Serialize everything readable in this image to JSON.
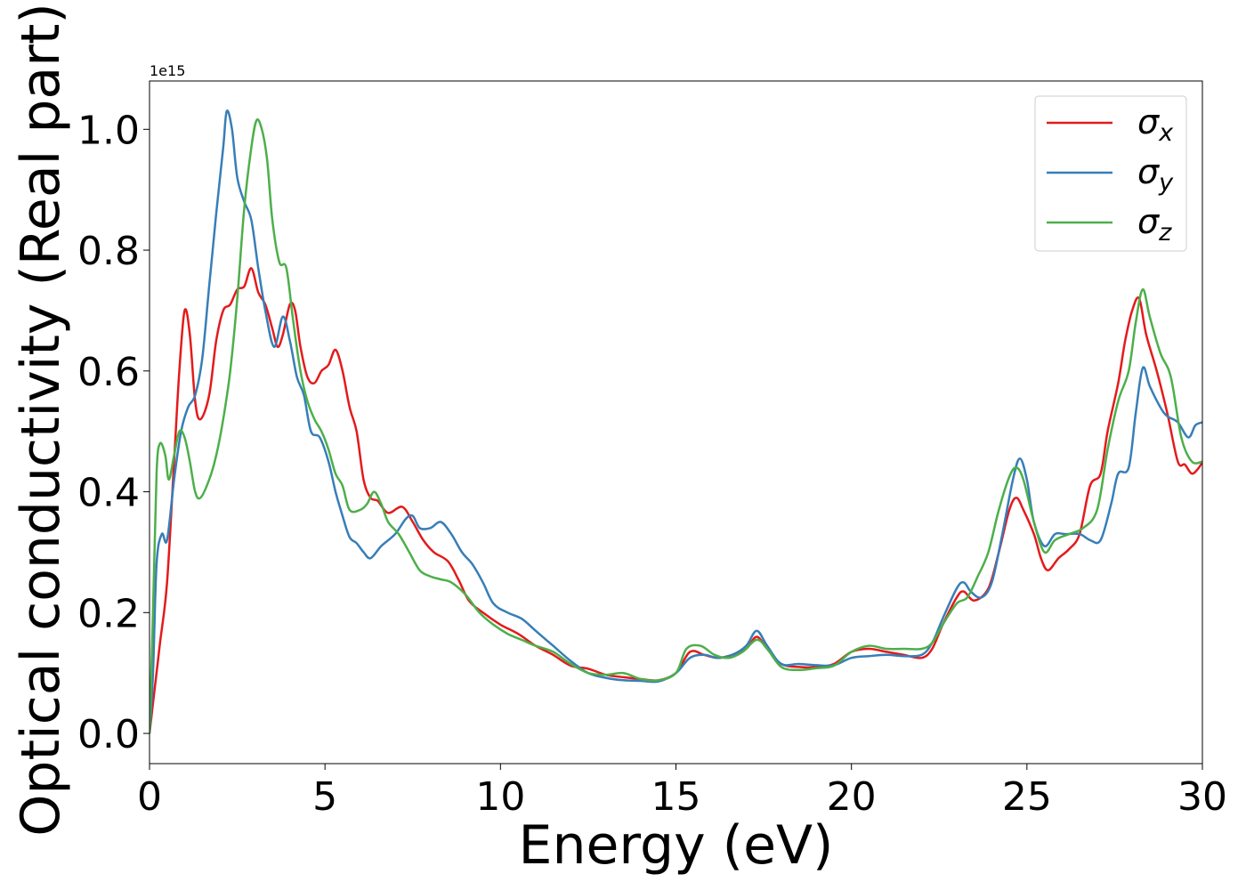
{
  "chart_data": {
    "type": "line",
    "xlabel": "Energy (eV)",
    "ylabel": "Optical conductivity (Real part)",
    "y_multiplier_label": "1e15",
    "xlim": [
      0,
      30
    ],
    "ylim": [
      -0.05,
      1.08
    ],
    "xticks": [
      0,
      5,
      10,
      15,
      20,
      25,
      30
    ],
    "xtick_labels": [
      "0",
      "5",
      "10",
      "15",
      "20",
      "25",
      "30"
    ],
    "yticks": [
      0.0,
      0.2,
      0.4,
      0.6,
      0.8,
      1.0
    ],
    "ytick_labels": [
      "0.0",
      "0.2",
      "0.4",
      "0.6",
      "0.8",
      "1.0"
    ],
    "grid": false,
    "legend_position": "top-right",
    "series": [
      {
        "name": "σx",
        "color": "#e41a1c",
        "points": [
          [
            0,
            0
          ],
          [
            0.1,
            0.05
          ],
          [
            0.3,
            0.15
          ],
          [
            0.5,
            0.25
          ],
          [
            0.7,
            0.45
          ],
          [
            0.85,
            0.6
          ],
          [
            1.0,
            0.7
          ],
          [
            1.15,
            0.66
          ],
          [
            1.3,
            0.55
          ],
          [
            1.45,
            0.52
          ],
          [
            1.7,
            0.56
          ],
          [
            1.9,
            0.65
          ],
          [
            2.1,
            0.7
          ],
          [
            2.3,
            0.71
          ],
          [
            2.5,
            0.735
          ],
          [
            2.7,
            0.74
          ],
          [
            2.9,
            0.77
          ],
          [
            3.1,
            0.73
          ],
          [
            3.3,
            0.71
          ],
          [
            3.5,
            0.67
          ],
          [
            3.65,
            0.64
          ],
          [
            3.8,
            0.66
          ],
          [
            4.0,
            0.71
          ],
          [
            4.15,
            0.7
          ],
          [
            4.3,
            0.64
          ],
          [
            4.5,
            0.59
          ],
          [
            4.7,
            0.58
          ],
          [
            4.9,
            0.6
          ],
          [
            5.1,
            0.61
          ],
          [
            5.3,
            0.635
          ],
          [
            5.5,
            0.6
          ],
          [
            5.7,
            0.54
          ],
          [
            5.9,
            0.5
          ],
          [
            6.1,
            0.42
          ],
          [
            6.3,
            0.39
          ],
          [
            6.5,
            0.385
          ],
          [
            6.8,
            0.365
          ],
          [
            7.2,
            0.375
          ],
          [
            7.5,
            0.35
          ],
          [
            7.8,
            0.32
          ],
          [
            8.1,
            0.3
          ],
          [
            8.5,
            0.285
          ],
          [
            8.8,
            0.255
          ],
          [
            9.1,
            0.22
          ],
          [
            9.5,
            0.2
          ],
          [
            10.0,
            0.18
          ],
          [
            10.5,
            0.165
          ],
          [
            11.0,
            0.145
          ],
          [
            11.5,
            0.13
          ],
          [
            12.0,
            0.112
          ],
          [
            12.5,
            0.107
          ],
          [
            13.0,
            0.097
          ],
          [
            13.5,
            0.093
          ],
          [
            14.0,
            0.09
          ],
          [
            14.5,
            0.088
          ],
          [
            15.0,
            0.1
          ],
          [
            15.4,
            0.135
          ],
          [
            15.8,
            0.13
          ],
          [
            16.2,
            0.125
          ],
          [
            16.6,
            0.13
          ],
          [
            17.0,
            0.14
          ],
          [
            17.3,
            0.16
          ],
          [
            17.6,
            0.14
          ],
          [
            18.0,
            0.115
          ],
          [
            18.5,
            0.11
          ],
          [
            19.0,
            0.11
          ],
          [
            19.5,
            0.115
          ],
          [
            20.0,
            0.135
          ],
          [
            20.5,
            0.14
          ],
          [
            21.0,
            0.135
          ],
          [
            21.5,
            0.13
          ],
          [
            22.0,
            0.125
          ],
          [
            22.3,
            0.14
          ],
          [
            22.6,
            0.18
          ],
          [
            23.0,
            0.225
          ],
          [
            23.2,
            0.235
          ],
          [
            23.5,
            0.22
          ],
          [
            23.9,
            0.24
          ],
          [
            24.2,
            0.3
          ],
          [
            24.5,
            0.37
          ],
          [
            24.7,
            0.39
          ],
          [
            24.9,
            0.37
          ],
          [
            25.2,
            0.33
          ],
          [
            25.4,
            0.29
          ],
          [
            25.6,
            0.27
          ],
          [
            25.9,
            0.29
          ],
          [
            26.2,
            0.305
          ],
          [
            26.5,
            0.33
          ],
          [
            26.8,
            0.41
          ],
          [
            27.1,
            0.43
          ],
          [
            27.3,
            0.5
          ],
          [
            27.6,
            0.58
          ],
          [
            27.8,
            0.65
          ],
          [
            28.0,
            0.7
          ],
          [
            28.2,
            0.72
          ],
          [
            28.4,
            0.66
          ],
          [
            28.7,
            0.6
          ],
          [
            29.0,
            0.53
          ],
          [
            29.3,
            0.45
          ],
          [
            29.5,
            0.445
          ],
          [
            29.7,
            0.43
          ],
          [
            29.9,
            0.44
          ],
          [
            30.0,
            0.45
          ]
        ]
      },
      {
        "name": "σy",
        "color": "#377eb8",
        "points": [
          [
            0,
            0
          ],
          [
            0.1,
            0.1
          ],
          [
            0.2,
            0.28
          ],
          [
            0.35,
            0.33
          ],
          [
            0.5,
            0.32
          ],
          [
            0.7,
            0.42
          ],
          [
            0.9,
            0.5
          ],
          [
            1.1,
            0.54
          ],
          [
            1.3,
            0.56
          ],
          [
            1.5,
            0.62
          ],
          [
            1.7,
            0.74
          ],
          [
            1.9,
            0.86
          ],
          [
            2.1,
            0.97
          ],
          [
            2.2,
            1.03
          ],
          [
            2.35,
            1.0
          ],
          [
            2.5,
            0.92
          ],
          [
            2.7,
            0.88
          ],
          [
            2.9,
            0.85
          ],
          [
            3.1,
            0.77
          ],
          [
            3.3,
            0.7
          ],
          [
            3.55,
            0.64
          ],
          [
            3.8,
            0.69
          ],
          [
            4.0,
            0.65
          ],
          [
            4.2,
            0.59
          ],
          [
            4.4,
            0.56
          ],
          [
            4.6,
            0.5
          ],
          [
            4.85,
            0.49
          ],
          [
            5.1,
            0.45
          ],
          [
            5.3,
            0.4
          ],
          [
            5.5,
            0.36
          ],
          [
            5.7,
            0.325
          ],
          [
            5.9,
            0.315
          ],
          [
            6.1,
            0.3
          ],
          [
            6.3,
            0.29
          ],
          [
            6.6,
            0.31
          ],
          [
            7.0,
            0.33
          ],
          [
            7.3,
            0.355
          ],
          [
            7.5,
            0.36
          ],
          [
            7.7,
            0.34
          ],
          [
            8.0,
            0.34
          ],
          [
            8.3,
            0.35
          ],
          [
            8.6,
            0.33
          ],
          [
            8.9,
            0.3
          ],
          [
            9.2,
            0.28
          ],
          [
            9.5,
            0.25
          ],
          [
            9.8,
            0.215
          ],
          [
            10.2,
            0.2
          ],
          [
            10.6,
            0.19
          ],
          [
            11.0,
            0.17
          ],
          [
            11.5,
            0.145
          ],
          [
            12.0,
            0.12
          ],
          [
            12.5,
            0.1
          ],
          [
            13.0,
            0.092
          ],
          [
            13.5,
            0.088
          ],
          [
            14.0,
            0.087
          ],
          [
            14.5,
            0.086
          ],
          [
            15.0,
            0.1
          ],
          [
            15.4,
            0.125
          ],
          [
            15.8,
            0.13
          ],
          [
            16.2,
            0.125
          ],
          [
            16.6,
            0.13
          ],
          [
            17.0,
            0.145
          ],
          [
            17.3,
            0.17
          ],
          [
            17.6,
            0.145
          ],
          [
            18.0,
            0.115
          ],
          [
            18.5,
            0.115
          ],
          [
            19.0,
            0.113
          ],
          [
            19.5,
            0.113
          ],
          [
            20.0,
            0.125
          ],
          [
            20.5,
            0.128
          ],
          [
            21.0,
            0.13
          ],
          [
            21.5,
            0.128
          ],
          [
            22.0,
            0.13
          ],
          [
            22.3,
            0.15
          ],
          [
            22.6,
            0.19
          ],
          [
            23.0,
            0.24
          ],
          [
            23.2,
            0.25
          ],
          [
            23.4,
            0.235
          ],
          [
            23.7,
            0.225
          ],
          [
            24.0,
            0.25
          ],
          [
            24.3,
            0.33
          ],
          [
            24.6,
            0.42
          ],
          [
            24.8,
            0.455
          ],
          [
            25.0,
            0.42
          ],
          [
            25.2,
            0.35
          ],
          [
            25.5,
            0.31
          ],
          [
            25.8,
            0.33
          ],
          [
            26.1,
            0.33
          ],
          [
            26.5,
            0.33
          ],
          [
            26.8,
            0.32
          ],
          [
            27.1,
            0.32
          ],
          [
            27.4,
            0.38
          ],
          [
            27.6,
            0.43
          ],
          [
            27.9,
            0.44
          ],
          [
            28.1,
            0.53
          ],
          [
            28.3,
            0.605
          ],
          [
            28.5,
            0.575
          ],
          [
            28.8,
            0.54
          ],
          [
            29.0,
            0.525
          ],
          [
            29.3,
            0.515
          ],
          [
            29.6,
            0.49
          ],
          [
            29.8,
            0.51
          ],
          [
            30.0,
            0.515
          ]
        ]
      },
      {
        "name": "σz",
        "color": "#4daf4a",
        "points": [
          [
            0,
            0
          ],
          [
            0.1,
            0.2
          ],
          [
            0.2,
            0.43
          ],
          [
            0.3,
            0.48
          ],
          [
            0.45,
            0.46
          ],
          [
            0.55,
            0.42
          ],
          [
            0.7,
            0.46
          ],
          [
            0.85,
            0.5
          ],
          [
            1.0,
            0.49
          ],
          [
            1.15,
            0.45
          ],
          [
            1.3,
            0.4
          ],
          [
            1.45,
            0.39
          ],
          [
            1.7,
            0.42
          ],
          [
            1.9,
            0.46
          ],
          [
            2.1,
            0.52
          ],
          [
            2.3,
            0.6
          ],
          [
            2.5,
            0.72
          ],
          [
            2.7,
            0.87
          ],
          [
            2.9,
            0.97
          ],
          [
            3.05,
            1.015
          ],
          [
            3.2,
            1.0
          ],
          [
            3.35,
            0.95
          ],
          [
            3.5,
            0.85
          ],
          [
            3.7,
            0.78
          ],
          [
            3.9,
            0.77
          ],
          [
            4.1,
            0.68
          ],
          [
            4.3,
            0.6
          ],
          [
            4.5,
            0.55
          ],
          [
            4.7,
            0.52
          ],
          [
            4.9,
            0.5
          ],
          [
            5.1,
            0.47
          ],
          [
            5.3,
            0.43
          ],
          [
            5.5,
            0.41
          ],
          [
            5.7,
            0.37
          ],
          [
            6.0,
            0.37
          ],
          [
            6.2,
            0.38
          ],
          [
            6.4,
            0.4
          ],
          [
            6.6,
            0.38
          ],
          [
            6.8,
            0.35
          ],
          [
            7.1,
            0.33
          ],
          [
            7.4,
            0.3
          ],
          [
            7.7,
            0.27
          ],
          [
            8.0,
            0.26
          ],
          [
            8.3,
            0.255
          ],
          [
            8.6,
            0.25
          ],
          [
            9.0,
            0.23
          ],
          [
            9.4,
            0.2
          ],
          [
            9.8,
            0.18
          ],
          [
            10.2,
            0.165
          ],
          [
            10.6,
            0.155
          ],
          [
            11.0,
            0.145
          ],
          [
            11.5,
            0.135
          ],
          [
            12.0,
            0.115
          ],
          [
            12.5,
            0.1
          ],
          [
            13.0,
            0.097
          ],
          [
            13.5,
            0.1
          ],
          [
            14.0,
            0.09
          ],
          [
            14.5,
            0.088
          ],
          [
            15.0,
            0.1
          ],
          [
            15.3,
            0.14
          ],
          [
            15.7,
            0.145
          ],
          [
            16.1,
            0.13
          ],
          [
            16.5,
            0.125
          ],
          [
            16.9,
            0.135
          ],
          [
            17.3,
            0.155
          ],
          [
            17.6,
            0.14
          ],
          [
            18.0,
            0.11
          ],
          [
            18.5,
            0.105
          ],
          [
            19.0,
            0.108
          ],
          [
            19.5,
            0.112
          ],
          [
            20.0,
            0.135
          ],
          [
            20.5,
            0.145
          ],
          [
            21.0,
            0.14
          ],
          [
            21.5,
            0.14
          ],
          [
            22.0,
            0.14
          ],
          [
            22.3,
            0.15
          ],
          [
            22.6,
            0.18
          ],
          [
            23.0,
            0.215
          ],
          [
            23.3,
            0.225
          ],
          [
            23.6,
            0.26
          ],
          [
            23.9,
            0.3
          ],
          [
            24.2,
            0.37
          ],
          [
            24.5,
            0.425
          ],
          [
            24.7,
            0.44
          ],
          [
            24.9,
            0.42
          ],
          [
            25.2,
            0.35
          ],
          [
            25.5,
            0.3
          ],
          [
            25.8,
            0.32
          ],
          [
            26.2,
            0.33
          ],
          [
            26.6,
            0.34
          ],
          [
            27.0,
            0.37
          ],
          [
            27.3,
            0.47
          ],
          [
            27.6,
            0.55
          ],
          [
            27.9,
            0.6
          ],
          [
            28.1,
            0.68
          ],
          [
            28.3,
            0.735
          ],
          [
            28.5,
            0.69
          ],
          [
            28.8,
            0.63
          ],
          [
            29.1,
            0.59
          ],
          [
            29.4,
            0.49
          ],
          [
            29.7,
            0.45
          ],
          [
            30.0,
            0.45
          ]
        ]
      }
    ]
  }
}
